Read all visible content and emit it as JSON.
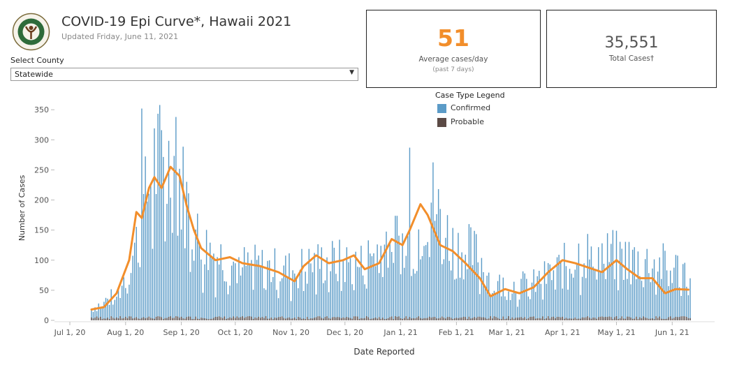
{
  "header": {
    "title": "COVID-19 Epi Curve*, Hawaii 2021",
    "updated": "Updated Friday, June 11, 2021"
  },
  "county": {
    "label": "Select County",
    "selected": "Statewide"
  },
  "kpi_average": {
    "value": "51",
    "label": "Average cases/day",
    "sublabel": "(past 7 days)"
  },
  "kpi_total": {
    "value": "35,551",
    "label": "Total Cases†"
  },
  "legend": {
    "title": "Case Type Legend",
    "items": [
      {
        "label": "Confirmed",
        "color": "#5b9bc7"
      },
      {
        "label": "Probable",
        "color": "#5b4a45"
      }
    ]
  },
  "chart_data": {
    "type": "bar",
    "xlabel": "Date Reported",
    "ylabel": "Number of Cases",
    "ylim": [
      0,
      370
    ],
    "y_ticks": [
      0,
      50,
      100,
      150,
      200,
      250,
      300,
      350
    ],
    "x_ticks": [
      "Jul 1, 20",
      "Aug 1, 20",
      "Sep 1, 20",
      "Oct 1, 20",
      "Nov 1, 20",
      "Dec 1, 20",
      "Jan 1, 21",
      "Feb 1, 21",
      "Mar 1, 21",
      "Apr 1, 21",
      "May 1, 21",
      "Jun 1, 21"
    ],
    "x_start": "2020-07-01",
    "series": [
      {
        "name": "Confirmed",
        "color": "#5b9bc7",
        "mark": "bar",
        "values_key": "daily",
        "start_date": "2020-07-13",
        "daily_profile": [
          [
            0,
            20
          ],
          [
            15,
            45
          ],
          [
            25,
            130
          ],
          [
            35,
            270
          ],
          [
            47,
            260
          ],
          [
            60,
            130
          ],
          [
            80,
            95
          ],
          [
            110,
            85
          ],
          [
            130,
            100
          ],
          [
            150,
            95
          ],
          [
            165,
            140
          ],
          [
            180,
            130
          ],
          [
            188,
            215
          ],
          [
            200,
            130
          ],
          [
            215,
            110
          ],
          [
            225,
            60
          ],
          [
            245,
            60
          ],
          [
            262,
            90
          ],
          [
            272,
            115
          ],
          [
            300,
            105
          ],
          [
            330,
            85
          ],
          [
            335,
            55
          ]
        ],
        "peaks": [
          {
            "date": "2020-08-10",
            "value": 352
          },
          {
            "date": "2020-08-29",
            "value": 338
          },
          {
            "date": "2021-01-06",
            "value": 287
          }
        ]
      },
      {
        "name": "Probable",
        "color": "#5b4a45",
        "mark": "bar",
        "typical": 5
      },
      {
        "name": "7-day average",
        "color": "#f28e2b",
        "mark": "line",
        "points": [
          [
            "2020-07-13",
            18
          ],
          [
            "2020-07-20",
            22
          ],
          [
            "2020-07-27",
            45
          ],
          [
            "2020-08-03",
            100
          ],
          [
            "2020-08-07",
            180
          ],
          [
            "2020-08-10",
            170
          ],
          [
            "2020-08-14",
            220
          ],
          [
            "2020-08-17",
            238
          ],
          [
            "2020-08-21",
            220
          ],
          [
            "2020-08-26",
            255
          ],
          [
            "2020-08-31",
            240
          ],
          [
            "2020-09-04",
            190
          ],
          [
            "2020-09-08",
            150
          ],
          [
            "2020-09-12",
            120
          ],
          [
            "2020-09-20",
            100
          ],
          [
            "2020-09-28",
            105
          ],
          [
            "2020-10-05",
            95
          ],
          [
            "2020-10-15",
            90
          ],
          [
            "2020-10-25",
            80
          ],
          [
            "2020-11-03",
            65
          ],
          [
            "2020-11-08",
            90
          ],
          [
            "2020-11-15",
            108
          ],
          [
            "2020-11-22",
            95
          ],
          [
            "2020-11-30",
            100
          ],
          [
            "2020-12-06",
            108
          ],
          [
            "2020-12-12",
            85
          ],
          [
            "2020-12-20",
            95
          ],
          [
            "2020-12-27",
            135
          ],
          [
            "2021-01-02",
            125
          ],
          [
            "2021-01-06",
            150
          ],
          [
            "2021-01-12",
            193
          ],
          [
            "2021-01-16",
            175
          ],
          [
            "2021-01-23",
            125
          ],
          [
            "2021-01-30",
            115
          ],
          [
            "2021-02-06",
            95
          ],
          [
            "2021-02-14",
            70
          ],
          [
            "2021-02-20",
            40
          ],
          [
            "2021-02-28",
            52
          ],
          [
            "2021-03-08",
            45
          ],
          [
            "2021-03-16",
            55
          ],
          [
            "2021-03-24",
            80
          ],
          [
            "2021-04-01",
            100
          ],
          [
            "2021-04-08",
            95
          ],
          [
            "2021-04-15",
            88
          ],
          [
            "2021-04-23",
            80
          ],
          [
            "2021-05-01",
            100
          ],
          [
            "2021-05-07",
            85
          ],
          [
            "2021-05-14",
            70
          ],
          [
            "2021-05-21",
            70
          ],
          [
            "2021-05-28",
            45
          ],
          [
            "2021-06-03",
            52
          ],
          [
            "2021-06-10",
            51
          ]
        ]
      }
    ]
  }
}
